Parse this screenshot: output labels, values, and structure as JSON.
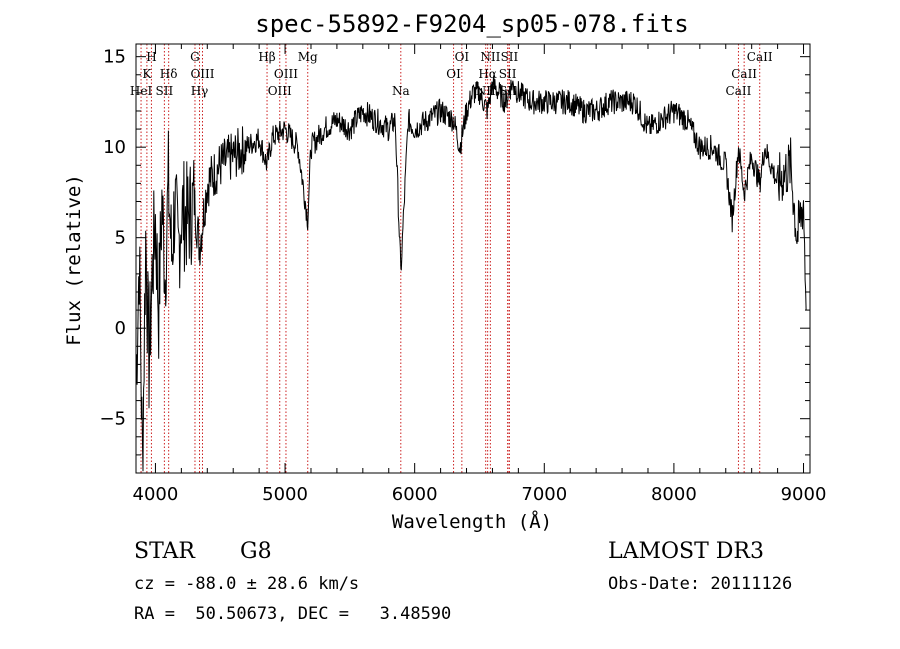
{
  "chart_data": {
    "type": "line",
    "title": "spec-55892-F9204_sp05-078.fits",
    "xlabel": "Wavelength (Å)",
    "ylabel": "Flux (relative)",
    "xlim": [
      3850,
      9050
    ],
    "ylim": [
      -8,
      15.7
    ],
    "x_ticks": [
      4000,
      5000,
      6000,
      7000,
      8000,
      9000
    ],
    "y_ticks": [
      -5,
      0,
      5,
      10,
      15
    ],
    "series": [
      {
        "name": "flux",
        "x": [
          3850,
          3875,
          3900,
          3925,
          3950,
          3975,
          4000,
          4025,
          4050,
          4075,
          4100,
          4125,
          4150,
          4175,
          4200,
          4250,
          4300,
          4340,
          4400,
          4450,
          4500,
          4600,
          4700,
          4800,
          4861,
          4900,
          5000,
          5100,
          5175,
          5200,
          5300,
          5400,
          5500,
          5600,
          5700,
          5800,
          5850,
          5893,
          5950,
          6000,
          6100,
          6200,
          6300,
          6350,
          6400,
          6450,
          6500,
          6563,
          6600,
          6650,
          6700,
          6750,
          6800,
          6900,
          7000,
          7100,
          7200,
          7300,
          7400,
          7500,
          7600,
          7700,
          7800,
          7900,
          8000,
          8100,
          8200,
          8300,
          8400,
          8450,
          8498,
          8542,
          8600,
          8662,
          8700,
          8800,
          8900,
          8950,
          9000,
          9020
        ],
        "y": [
          -3,
          4,
          -7.5,
          5,
          -2,
          3,
          6,
          1,
          7,
          3,
          8,
          4,
          7,
          4,
          6.5,
          6,
          7,
          4.5,
          8,
          8.5,
          9,
          9.5,
          10,
          10.5,
          9,
          10.5,
          11,
          10,
          6,
          10,
          11,
          11.5,
          11,
          12,
          11.5,
          11,
          11.5,
          3,
          11.5,
          11,
          11.5,
          12,
          11.5,
          10,
          12,
          13,
          13,
          12,
          13.5,
          13,
          12.5,
          13.5,
          13,
          12.5,
          12.5,
          12.5,
          12.5,
          12,
          12,
          12.5,
          12.5,
          12.5,
          11,
          11.5,
          12,
          11.5,
          10,
          10,
          9,
          6,
          10,
          7.5,
          9.5,
          8,
          10,
          8,
          9,
          5,
          7,
          1
        ]
      }
    ],
    "spectral_lines": [
      {
        "label": "H",
        "x": 3969,
        "row": 0
      },
      {
        "label": "K",
        "x": 3934,
        "row": 1
      },
      {
        "label": "HeI",
        "x": 3889,
        "row": 2
      },
      {
        "label": "SII",
        "x": 4069,
        "row": 2
      },
      {
        "label": "Hδ",
        "x": 4102,
        "row": 1
      },
      {
        "label": "G",
        "x": 4305,
        "row": 0
      },
      {
        "label": "OIII",
        "x": 4363,
        "row": 1
      },
      {
        "label": "Hγ",
        "x": 4340,
        "row": 2
      },
      {
        "label": "Hβ",
        "x": 4861,
        "row": 0
      },
      {
        "label": "OIII",
        "x": 5007,
        "row": 1
      },
      {
        "label": "OIII",
        "x": 4959,
        "row": 2
      },
      {
        "label": "Mg",
        "x": 5175,
        "row": 0
      },
      {
        "label": "Na",
        "x": 5893,
        "row": 2
      },
      {
        "label": "OI",
        "x": 6364,
        "row": 0
      },
      {
        "label": "OI",
        "x": 6300,
        "row": 1
      },
      {
        "label": "NII",
        "x": 6584,
        "row": 0
      },
      {
        "label": "SII",
        "x": 6731,
        "row": 0
      },
      {
        "label": "Hα",
        "x": 6563,
        "row": 1
      },
      {
        "label": "SII",
        "x": 6717,
        "row": 1
      },
      {
        "label": "NII",
        "x": 6548,
        "row": 2
      },
      {
        "label": "SII",
        "x": 6720,
        "row": 2
      },
      {
        "label": "CaII",
        "x": 8662,
        "row": 0
      },
      {
        "label": "CaII",
        "x": 8542,
        "row": 1
      },
      {
        "label": "CaII",
        "x": 8498,
        "row": 2
      }
    ]
  },
  "info": {
    "class": "STAR",
    "subclass": "G8",
    "survey": "LAMOST DR3",
    "cz": "cz = -88.0 ± 28.6 km/s",
    "obs_date": "Obs-Date: 20111126",
    "coords": "RA =  50.50673, DEC =   3.48590"
  },
  "colors": {
    "line_marker": "#cc2222",
    "spectrum": "#000000"
  }
}
